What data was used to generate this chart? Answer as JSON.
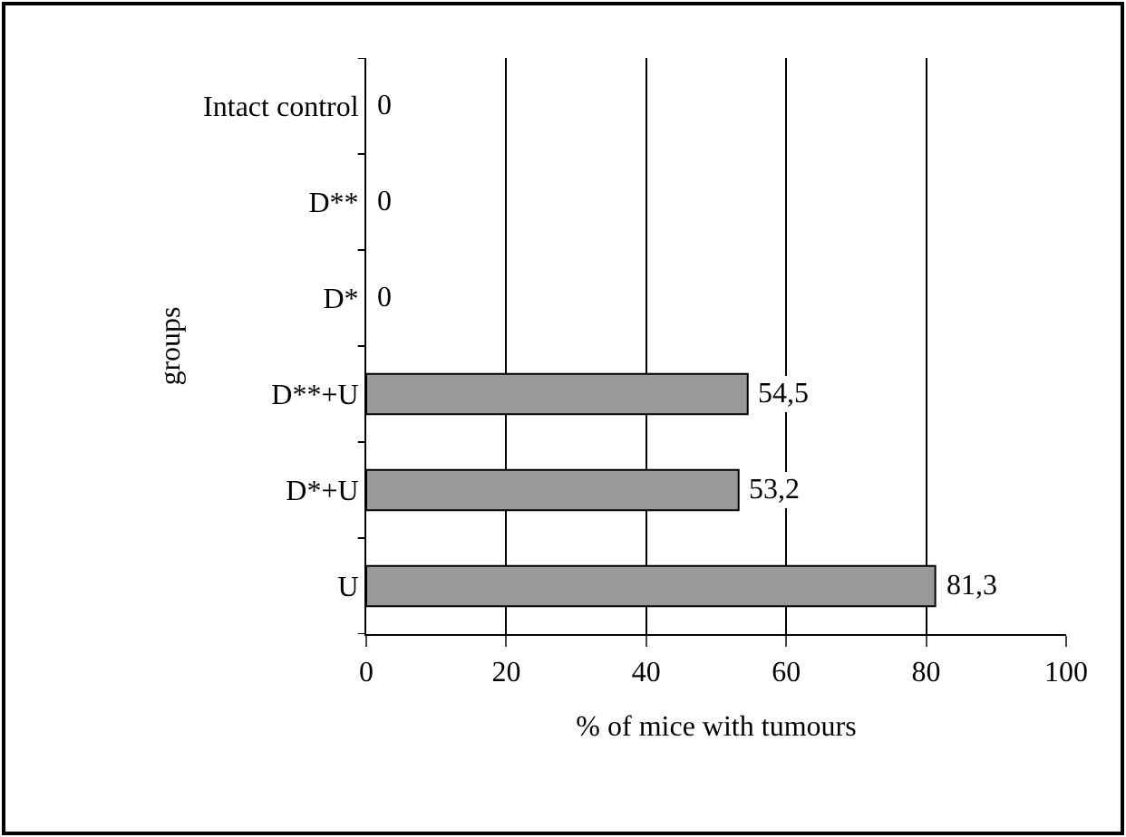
{
  "chart_data": {
    "type": "bar",
    "orientation": "horizontal",
    "xlabel": "% of mice with tumours",
    "ylabel": "groups",
    "categories": [
      "Intact control",
      "D**",
      "D*",
      "D**+U",
      "D*+U",
      "U"
    ],
    "values": [
      0,
      0,
      0,
      54.5,
      53.2,
      81.3
    ],
    "value_labels": [
      "0",
      "0",
      "0",
      "54,5",
      "53,2",
      "81,3"
    ],
    "color": "#999999",
    "xlim": [
      0,
      100
    ],
    "xticks": [
      0,
      20,
      40,
      60,
      80,
      100
    ],
    "grid": "x"
  }
}
